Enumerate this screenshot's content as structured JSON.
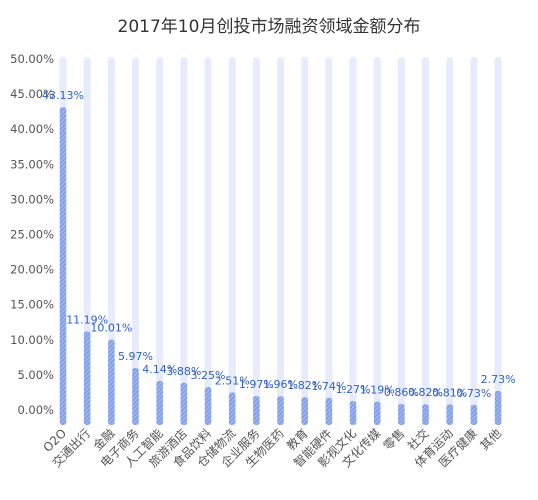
{
  "chart_data": {
    "type": "bar",
    "title": "2017年10月创投市场融资领域金额分布",
    "xlabel": "",
    "ylabel": "",
    "ylim": [
      0,
      50
    ],
    "yticks": [
      "0.00%",
      "5.00%",
      "10.00%",
      "15.00%",
      "20.00%",
      "25.00%",
      "30.00%",
      "35.00%",
      "40.00%",
      "45.00%",
      "50.00%"
    ],
    "grid": false,
    "legend": "none",
    "categories": [
      "O2O",
      "交通出行",
      "金融",
      "电子商务",
      "人工智能",
      "旅游酒店",
      "食品饮料",
      "仓储物流",
      "企业服务",
      "生物医药",
      "教育",
      "智能硬件",
      "影视文化",
      "文化传媒",
      "零售",
      "社交",
      "体育运动",
      "医疗健康",
      "其他"
    ],
    "values": [
      43.13,
      11.19,
      10.01,
      5.97,
      4.14,
      3.88,
      3.25,
      2.51,
      1.97,
      1.96,
      1.82,
      1.74,
      1.27,
      1.19,
      0.86,
      0.82,
      0.81,
      0.73,
      2.73
    ],
    "value_labels": [
      "43.13%",
      "11.19%",
      "10.01%",
      "5.97%",
      "4.14%",
      "3.88%",
      "3.25%",
      "2.51%",
      "1.97%",
      "1.96%",
      "1.82%",
      "1.74%",
      "1.27%",
      "1.19%",
      "0.86%",
      "0.82%",
      "0.81%",
      "0.73%",
      "2.73%"
    ],
    "colors": {
      "bar": "#7f9ce8",
      "bar_stripe": "#a9bdf2",
      "track": "#e6ecfb",
      "label": "#2f5fc7",
      "axis_text": "#555555",
      "title": "#333333"
    }
  }
}
